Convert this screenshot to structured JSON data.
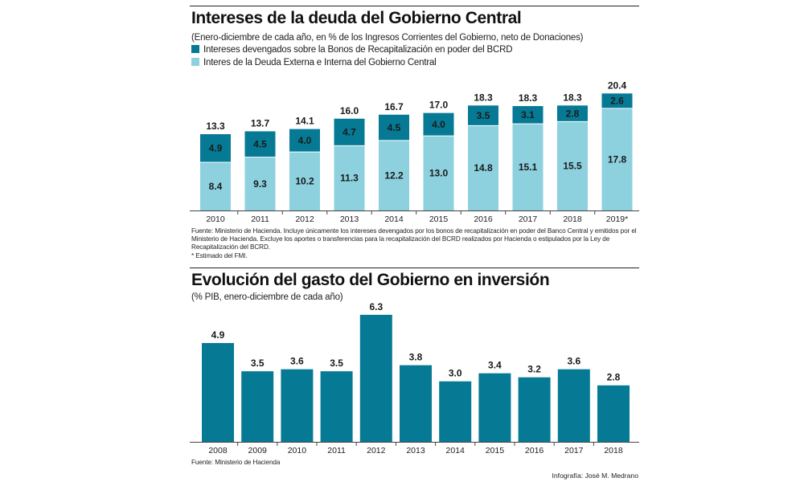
{
  "credit": "Infografía: José M. Medrano",
  "colors": {
    "dark": "#067a94",
    "light": "#8dd1df",
    "axis": "#444444"
  },
  "chart_data": [
    {
      "type": "bar",
      "stacked": true,
      "title": "Intereses de la deuda del Gobierno Central",
      "subtitle": "(Enero-diciembre de cada año, en % de los Ingresos Corrientes del Gobierno, neto de Donaciones)",
      "categories": [
        "2010",
        "2011",
        "2012",
        "2013",
        "2014",
        "2015",
        "2016",
        "2017",
        "2018",
        "2019*"
      ],
      "series": [
        {
          "name": "Interes de la Deuda Externa e Interna del Gobierno Central",
          "color": "#8dd1df",
          "values": [
            8.4,
            9.3,
            10.2,
            11.3,
            12.2,
            13.0,
            14.8,
            15.1,
            15.5,
            17.8
          ]
        },
        {
          "name": "Intereses devengados sobre la Bonos de Recapitalización en poder del BCRD",
          "color": "#067a94",
          "values": [
            4.9,
            4.5,
            4.0,
            4.7,
            4.5,
            4.0,
            3.5,
            3.1,
            2.8,
            2.6
          ]
        }
      ],
      "totals": [
        "13.3",
        "13.7",
        "14.1",
        "16.0",
        "16.7",
        "17.0",
        "18.3",
        "18.3",
        "18.3",
        "20.4"
      ],
      "labels_light": [
        "8.4",
        "9.3",
        "10.2",
        "11.3",
        "12.2",
        "13.0",
        "14.8",
        "15.1",
        "15.5",
        "17.8"
      ],
      "labels_dark": [
        "4.9",
        "4.5",
        "4.0",
        "4.7",
        "4.5",
        "4.0",
        "3.5",
        "3.1",
        "2.8",
        "2.6"
      ],
      "legend": [
        {
          "label": "Intereses devengados sobre la Bonos de Recapitalización en poder del BCRD",
          "color": "#067a94"
        },
        {
          "label": "Interes de la Deuda Externa e Interna del Gobierno Central",
          "color": "#8dd1df"
        }
      ],
      "ylim": [
        0,
        22
      ],
      "grid": false,
      "legend_position": "top-left",
      "notes": [
        "Fuente: Ministerio de Hacienda. Incluye únicamente los intereses devengados por los bonos de recapitalización en poder del Banco Central y emitidos por el Ministerio de Hacienda. Excluye los aportes o transferencias para la recapitalización del BCRD realizados por Hacienda o estipulados por la Ley de Recapitalización del BCRD.",
        "* Estimado del FMI."
      ]
    },
    {
      "type": "bar",
      "title": "Evolución del gasto del Gobierno en inversión",
      "subtitle": "(% PIB, enero-diciembre de cada año)",
      "categories": [
        "2008",
        "2009",
        "2010",
        "2011",
        "2012",
        "2013",
        "2014",
        "2015",
        "2016",
        "2017",
        "2018"
      ],
      "values": [
        4.9,
        3.5,
        3.6,
        3.5,
        6.3,
        3.8,
        3.0,
        3.4,
        3.2,
        3.6,
        2.8
      ],
      "labels": [
        "4.9",
        "3.5",
        "3.6",
        "3.5",
        "6.3",
        "3.8",
        "3.0",
        "3.4",
        "3.2",
        "3.6",
        "2.8"
      ],
      "color": "#067a94",
      "ylim": [
        0,
        7
      ],
      "grid": false,
      "source": "Fuente: Ministerio de Hacienda"
    }
  ]
}
